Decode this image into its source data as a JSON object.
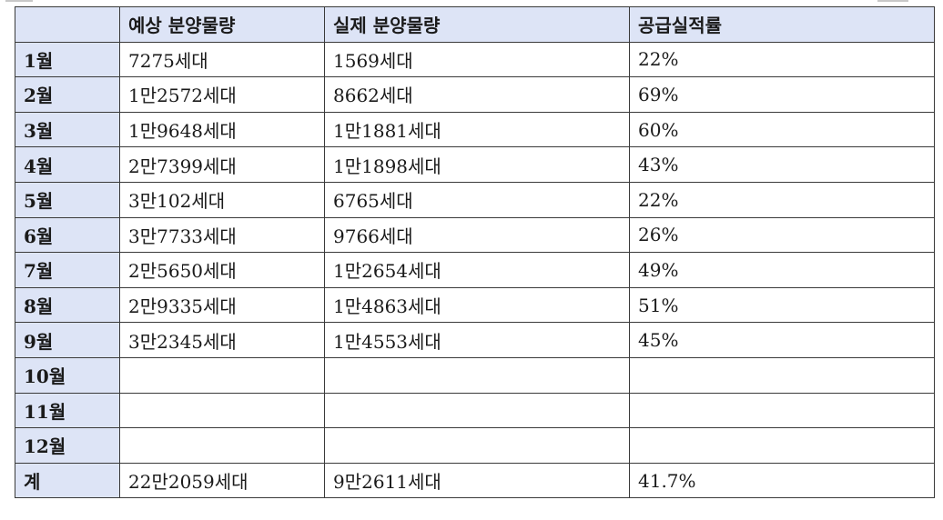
{
  "table": {
    "headers": [
      "",
      "예상 분양물량",
      "실제 분양물량",
      "공급실적률"
    ],
    "rows": [
      [
        "1월",
        "7275세대",
        "1569세대",
        "22%"
      ],
      [
        "2월",
        "1만2572세대",
        "8662세대",
        "69%"
      ],
      [
        "3월",
        "1만9648세대",
        "1만1881세대",
        "60%"
      ],
      [
        "4월",
        "2만7399세대",
        "1만1898세대",
        "43%"
      ],
      [
        "5월",
        "3만102세대",
        "6765세대",
        "22%"
      ],
      [
        "6월",
        "3만7733세대",
        "9766세대",
        "26%"
      ],
      [
        "7월",
        "2만5650세대",
        "1만2654세대",
        "49%"
      ],
      [
        "8월",
        "2만9335세대",
        "1만4863세대",
        "51%"
      ],
      [
        "9월",
        "3만2345세대",
        "1만4553세대",
        "45%"
      ],
      [
        "10월",
        "",
        "",
        ""
      ],
      [
        "11월",
        "",
        "",
        ""
      ],
      [
        "12월",
        "",
        "",
        ""
      ],
      [
        "계",
        "22만2059세대",
        "9만2611세대",
        "41.7%"
      ]
    ]
  },
  "colors": {
    "header_background": "#dde4f6",
    "border": "#3a3a3a",
    "text": "#1a1a1a"
  }
}
